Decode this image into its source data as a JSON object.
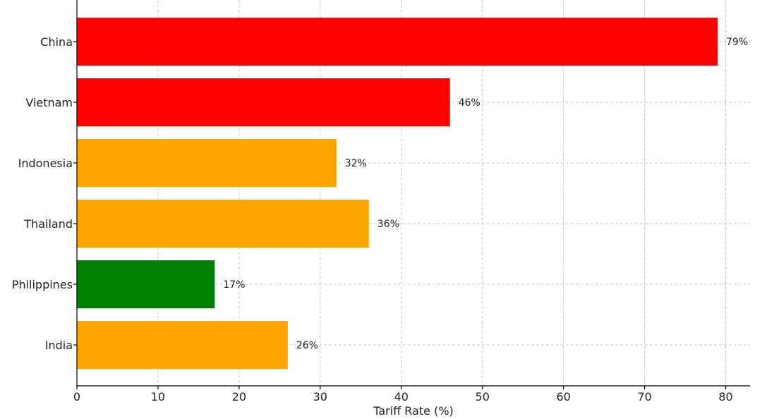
{
  "chart_data": {
    "type": "bar",
    "orientation": "horizontal",
    "categories": [
      "China",
      "Vietnam",
      "Indonesia",
      "Thailand",
      "Philippines",
      "India"
    ],
    "values": [
      79,
      46,
      32,
      36,
      17,
      26
    ],
    "value_labels": [
      "79%",
      "46%",
      "32%",
      "36%",
      "17%",
      "26%"
    ],
    "colors": [
      "#ff0000",
      "#ff0000",
      "#ffa500",
      "#ffa500",
      "#008000",
      "#ffa500"
    ],
    "title": "",
    "xlabel": "Tariff Rate (%)",
    "ylabel": "",
    "xlim": [
      0,
      83
    ],
    "xticks": [
      0,
      10,
      20,
      30,
      40,
      50,
      60,
      70,
      80
    ],
    "grid": true,
    "legend": "none"
  }
}
